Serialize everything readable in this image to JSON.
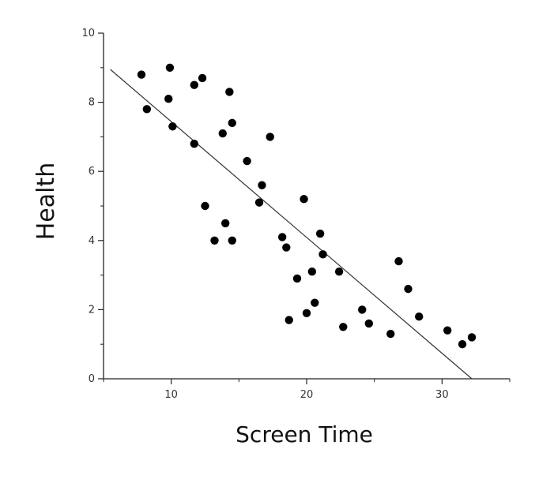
{
  "chart_data": {
    "type": "scatter",
    "xlabel": "Screen Time",
    "ylabel": "Health",
    "xlim": [
      5,
      35
    ],
    "ylim": [
      0,
      10
    ],
    "xticks": [
      10,
      20,
      30
    ],
    "yticks": [
      0,
      2,
      4,
      6,
      8,
      10
    ],
    "grid": false,
    "colors": {
      "points": "#000000",
      "line": "#333333",
      "axis": "#222222"
    },
    "series": [
      {
        "points": [
          {
            "x": 7.8,
            "y": 8.8
          },
          {
            "x": 8.2,
            "y": 7.8
          },
          {
            "x": 9.8,
            "y": 8.1
          },
          {
            "x": 9.9,
            "y": 9.0
          },
          {
            "x": 10.1,
            "y": 7.3
          },
          {
            "x": 11.7,
            "y": 8.5
          },
          {
            "x": 11.7,
            "y": 6.8
          },
          {
            "x": 12.3,
            "y": 8.7
          },
          {
            "x": 12.5,
            "y": 5.0
          },
          {
            "x": 13.2,
            "y": 4.0
          },
          {
            "x": 13.8,
            "y": 7.1
          },
          {
            "x": 14.0,
            "y": 4.5
          },
          {
            "x": 14.3,
            "y": 8.3
          },
          {
            "x": 14.5,
            "y": 7.4
          },
          {
            "x": 14.5,
            "y": 4.0
          },
          {
            "x": 15.6,
            "y": 6.3
          },
          {
            "x": 16.5,
            "y": 5.1
          },
          {
            "x": 16.7,
            "y": 5.6
          },
          {
            "x": 17.3,
            "y": 7.0
          },
          {
            "x": 18.2,
            "y": 4.1
          },
          {
            "x": 18.5,
            "y": 3.8
          },
          {
            "x": 18.7,
            "y": 1.7
          },
          {
            "x": 19.3,
            "y": 2.9
          },
          {
            "x": 19.8,
            "y": 5.2
          },
          {
            "x": 20.0,
            "y": 1.9
          },
          {
            "x": 20.4,
            "y": 3.1
          },
          {
            "x": 20.6,
            "y": 2.2
          },
          {
            "x": 21.0,
            "y": 4.2
          },
          {
            "x": 21.2,
            "y": 3.6
          },
          {
            "x": 22.4,
            "y": 3.1
          },
          {
            "x": 22.7,
            "y": 1.5
          },
          {
            "x": 24.1,
            "y": 2.0
          },
          {
            "x": 24.6,
            "y": 1.6
          },
          {
            "x": 26.2,
            "y": 1.3
          },
          {
            "x": 26.8,
            "y": 3.4
          },
          {
            "x": 27.5,
            "y": 2.6
          },
          {
            "x": 28.3,
            "y": 1.8
          },
          {
            "x": 30.4,
            "y": 1.4
          },
          {
            "x": 31.5,
            "y": 1.0
          },
          {
            "x": 32.2,
            "y": 1.2
          }
        ]
      }
    ],
    "trendline": {
      "x1": 5.5,
      "y1": 8.95,
      "x2": 32.2,
      "y2": 0.0
    }
  }
}
